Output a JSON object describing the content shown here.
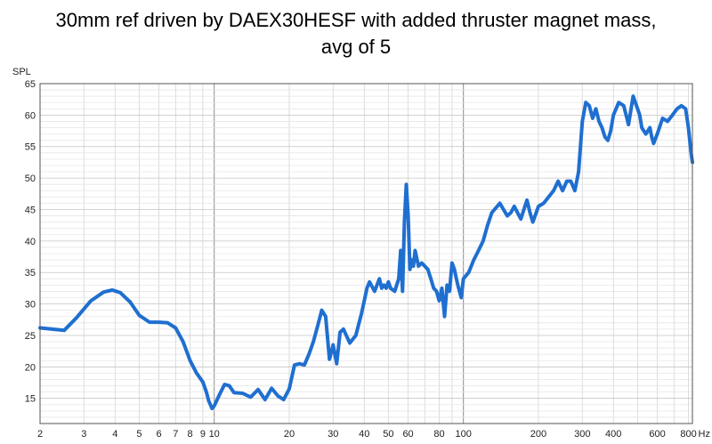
{
  "chart_data": {
    "type": "line",
    "title_lines": [
      "30mm ref driven by DAEX30HESF with added thruster magnet mass,",
      "avg of 5"
    ],
    "ylabel": "SPL",
    "xlabel_unit": "Hz",
    "x_scale": "log",
    "xlim": [
      2,
      830
    ],
    "ylim": [
      11,
      65
    ],
    "grid": true,
    "line_color": "#1f6fd0",
    "grid_color": "#d4d4d4",
    "major_grid_color": "#8c8c8c",
    "x_ticks": [
      {
        "value": 2,
        "label": "2"
      },
      {
        "value": 3,
        "label": "3"
      },
      {
        "value": 4,
        "label": "4"
      },
      {
        "value": 5,
        "label": "5"
      },
      {
        "value": 6,
        "label": "6"
      },
      {
        "value": 7,
        "label": "7"
      },
      {
        "value": 8,
        "label": "8"
      },
      {
        "value": 9,
        "label": "9"
      },
      {
        "value": 10,
        "label": "10"
      },
      {
        "value": 20,
        "label": "20"
      },
      {
        "value": 30,
        "label": "30"
      },
      {
        "value": 40,
        "label": "40"
      },
      {
        "value": 50,
        "label": "50"
      },
      {
        "value": 60,
        "label": "60"
      },
      {
        "value": 80,
        "label": "80"
      },
      {
        "value": 100,
        "label": "100"
      },
      {
        "value": 200,
        "label": "200"
      },
      {
        "value": 300,
        "label": "300"
      },
      {
        "value": 400,
        "label": "400"
      },
      {
        "value": 600,
        "label": "600"
      },
      {
        "value": 800,
        "label": "800"
      }
    ],
    "y_ticks": [
      15,
      20,
      25,
      30,
      35,
      40,
      45,
      50,
      55,
      60,
      65
    ],
    "series": [
      {
        "x": [
          2,
          2.5,
          2.8,
          3.2,
          3.6,
          3.9,
          4.2,
          4.6,
          5,
          5.5,
          6,
          6.5,
          7,
          7.5,
          8,
          8.5,
          9,
          9.3,
          9.5,
          9.8,
          10,
          10.5,
          11,
          11.5,
          12,
          13,
          14,
          15,
          16,
          17,
          18,
          19,
          20,
          21,
          22,
          23,
          24,
          25,
          26,
          27,
          28,
          29,
          30,
          31,
          32,
          33,
          35,
          37,
          39,
          40,
          41,
          42,
          44,
          46,
          47,
          48,
          49,
          50,
          51,
          53,
          55,
          56,
          57,
          58,
          59,
          60,
          61,
          62,
          63,
          64,
          66,
          68,
          70,
          72,
          74,
          76,
          78,
          80,
          82,
          84,
          86,
          88,
          90,
          92,
          95,
          98,
          100,
          105,
          110,
          115,
          120,
          125,
          130,
          140,
          150,
          155,
          160,
          170,
          180,
          185,
          190,
          200,
          210,
          220,
          230,
          240,
          250,
          260,
          270,
          280,
          290,
          300,
          310,
          320,
          330,
          340,
          350,
          360,
          370,
          380,
          390,
          400,
          420,
          440,
          460,
          480,
          500,
          510,
          520,
          540,
          560,
          570,
          580,
          600,
          630,
          660,
          690,
          720,
          750,
          780,
          800,
          820,
          830
        ],
        "y": [
          26.2,
          25.8,
          27.8,
          30.5,
          31.9,
          32.2,
          31.8,
          30.3,
          28.2,
          27.1,
          27.1,
          27.0,
          26.2,
          24.0,
          21.0,
          19.0,
          17.6,
          16.0,
          14.6,
          13.4,
          13.8,
          15.6,
          17.2,
          17.0,
          15.9,
          15.8,
          15.2,
          16.4,
          14.8,
          16.6,
          15.4,
          14.8,
          16.5,
          20.3,
          20.5,
          20.3,
          22.0,
          24.0,
          26.5,
          29.0,
          28.0,
          21.2,
          23.5,
          20.5,
          25.5,
          26.0,
          23.8,
          25.0,
          28.5,
          30.5,
          32.5,
          33.5,
          32.0,
          34.0,
          32.5,
          33.0,
          32.5,
          33.5,
          32.5,
          32.0,
          34.0,
          38.5,
          32.0,
          43.0,
          49.0,
          44.0,
          35.5,
          37.0,
          36.0,
          38.5,
          36.0,
          36.5,
          36.0,
          35.5,
          34.0,
          32.5,
          32.0,
          30.5,
          32.5,
          28.0,
          33.0,
          32.0,
          36.5,
          35.5,
          33.0,
          31.0,
          34.0,
          35.0,
          37.0,
          38.5,
          40.0,
          42.5,
          44.5,
          46.0,
          44.0,
          44.5,
          45.5,
          43.5,
          46.5,
          44.5,
          43.0,
          45.5,
          46.0,
          47.0,
          48.0,
          49.5,
          48.0,
          49.5,
          49.5,
          48.0,
          51.0,
          59.0,
          62.0,
          61.5,
          59.5,
          61.0,
          59.0,
          58.0,
          56.5,
          56.0,
          57.5,
          60.0,
          62.0,
          61.5,
          58.5,
          63.0,
          61.0,
          60.0,
          58.0,
          57.0,
          58.0,
          56.5,
          55.5,
          57.0,
          59.5,
          59.0,
          60.0,
          61.0,
          61.5,
          61.0,
          58.0,
          54.0,
          52.5
        ]
      }
    ]
  }
}
